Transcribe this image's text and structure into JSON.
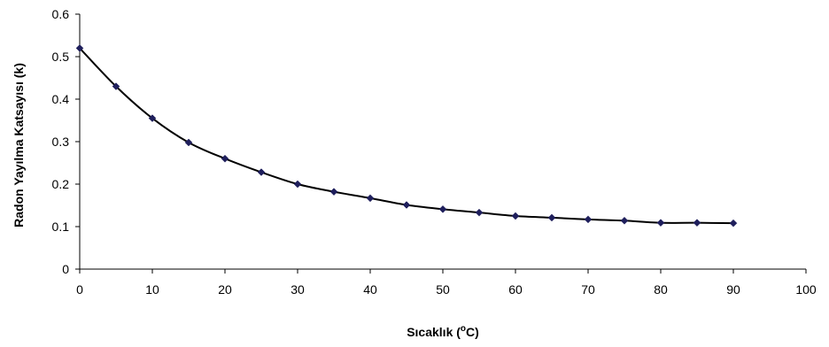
{
  "chart_data": {
    "type": "line",
    "title": "",
    "xlabel": "Sıcaklık (",
    "xlabel_sup": "o",
    "xlabel_tail": "C)",
    "ylabel": "Radon Yayılma Katsayısı (k)",
    "xlim": [
      0,
      100
    ],
    "ylim": [
      0,
      0.6
    ],
    "x_ticks": [
      0,
      10,
      20,
      30,
      40,
      50,
      60,
      70,
      80,
      90,
      100
    ],
    "y_ticks": [
      0,
      0.1,
      0.2,
      0.3,
      0.4,
      0.5,
      0.6
    ],
    "grid": false,
    "legend": "none",
    "series": [
      {
        "x": [
          0,
          5,
          10,
          15,
          20,
          25,
          30,
          35,
          40,
          45,
          50,
          55,
          60,
          65,
          70,
          75,
          80,
          85,
          90
        ],
        "values": [
          0.52,
          0.43,
          0.355,
          0.298,
          0.26,
          0.228,
          0.2,
          0.182,
          0.167,
          0.151,
          0.141,
          0.133,
          0.125,
          0.121,
          0.117,
          0.114,
          0.109,
          0.109,
          0.108
        ],
        "line_color": "#000000",
        "marker_color": "#1f1f5c",
        "marker": "diamond"
      }
    ]
  }
}
